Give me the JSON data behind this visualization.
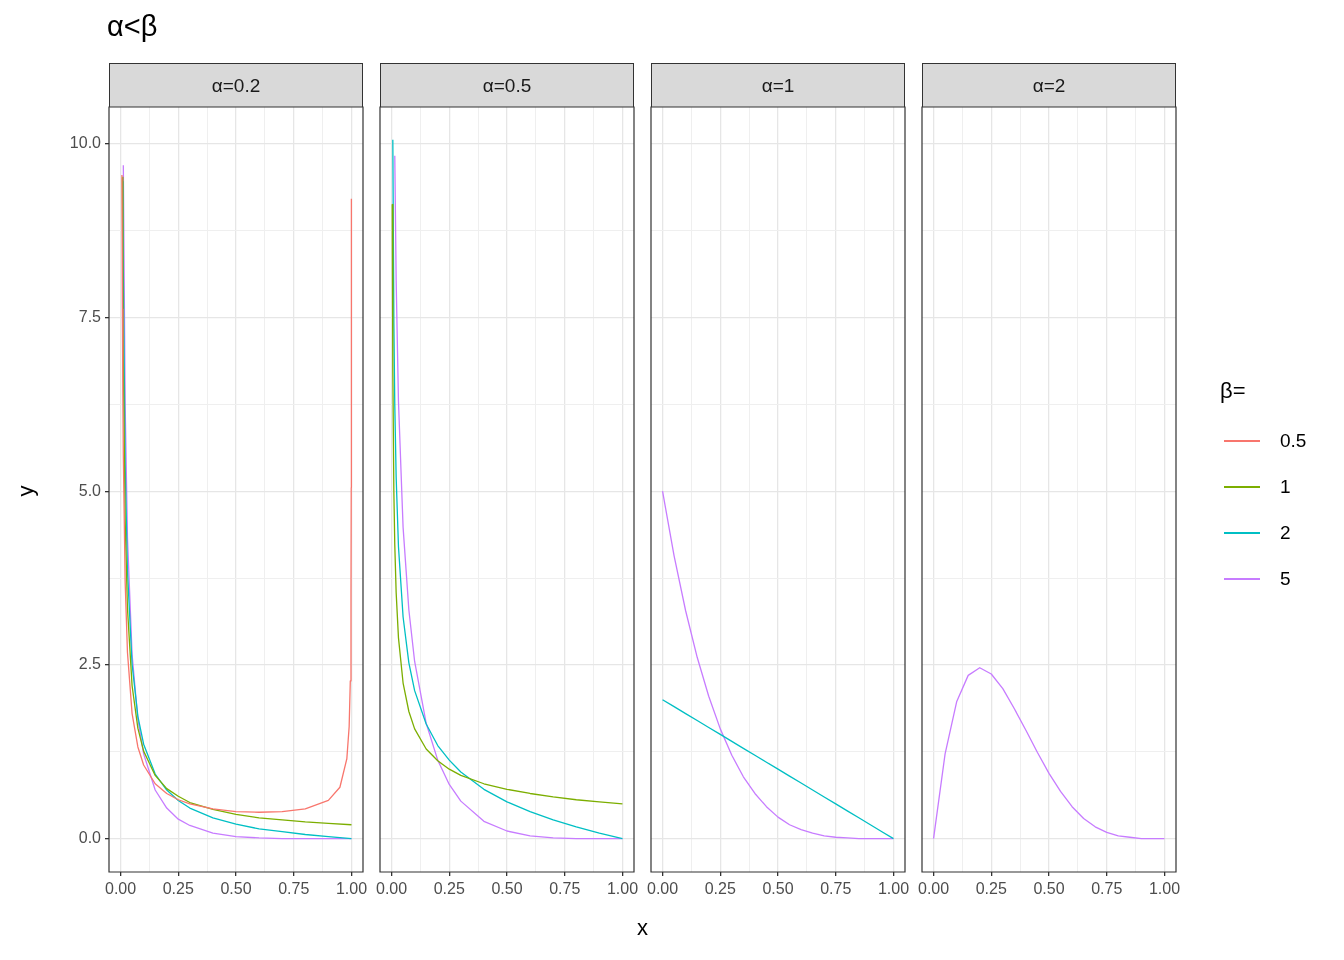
{
  "chart_data": [
    {
      "type": "line",
      "title": "α=0.2",
      "annotations": [
        "α<β"
      ],
      "ylabel": "y",
      "legend_title": "β=",
      "legend": "right",
      "grid": true,
      "xlim": [
        -0.05,
        1.05
      ],
      "ylim": [
        -0.48,
        10.53
      ],
      "xticks": [
        {
          "value": 0,
          "label": "0.00"
        },
        {
          "value": 0.125,
          "label": null
        },
        {
          "value": 0.25,
          "label": "0.25"
        },
        {
          "value": 0.375,
          "label": null
        },
        {
          "value": 0.5,
          "label": "0.50"
        },
        {
          "value": 0.625,
          "label": null
        },
        {
          "value": 0.75,
          "label": "0.75"
        },
        {
          "value": 0.875,
          "label": null
        },
        {
          "value": 1,
          "label": "1.00"
        }
      ],
      "yticks": [
        {
          "value": 0,
          "label": "0.0"
        },
        {
          "value": 1.25,
          "label": null
        },
        {
          "value": 2.5,
          "label": "2.5"
        },
        {
          "value": 3.75,
          "label": null
        },
        {
          "value": 5,
          "label": "5.0"
        },
        {
          "value": 6.25,
          "label": null
        },
        {
          "value": 7.5,
          "label": "7.5"
        },
        {
          "value": 8.75,
          "label": null
        },
        {
          "value": 10,
          "label": "10.0"
        }
      ],
      "x": [
        0.008,
        0.01,
        0.012,
        0.02,
        0.03,
        0.05,
        0.075,
        0.1,
        0.15,
        0.2,
        0.25,
        0.3,
        0.4,
        0.5,
        0.6,
        0.7,
        0.8,
        0.9,
        1
      ],
      "series": [
        {
          "name": "0.5",
          "color": "#f8766d",
          "x": [
            0.006,
            0.008,
            0.01,
            0.012,
            0.02,
            0.03,
            0.05,
            0.075,
            0.1,
            0.15,
            0.2,
            0.25,
            0.3,
            0.4,
            0.5,
            0.6,
            0.7,
            0.8,
            0.9,
            0.95,
            0.98,
            0.99,
            0.995,
            0.998,
            0.999,
            0.9997
          ],
          "values": [
            9.55,
            7.62,
            6.38,
            5.52,
            3.69,
            2.68,
            1.8,
            1.32,
            1.06,
            0.79,
            0.65,
            0.56,
            0.5,
            0.43,
            0.39,
            0.38,
            0.39,
            0.43,
            0.55,
            0.74,
            1.15,
            1.61,
            2.27,
            3.57,
            5.05,
            9.21
          ]
        },
        {
          "name": "1",
          "color": "#7cae00",
          "values": [
            9.52,
            7.96,
            6.88,
            4.57,
            3.31,
            2.2,
            1.59,
            1.26,
            0.91,
            0.72,
            0.61,
            0.52,
            0.42,
            0.35,
            0.3,
            0.27,
            0.24,
            0.22,
            0.2
          ]
        },
        {
          "name": "2",
          "color": "#00bfc4",
          "values": [
            null,
            9.46,
            8.16,
            5.38,
            3.85,
            2.51,
            1.76,
            1.36,
            0.93,
            0.7,
            0.55,
            0.44,
            0.3,
            0.21,
            0.14,
            0.1,
            0.06,
            0.03,
            0
          ]
        },
        {
          "name": "5",
          "color": "#c77cff",
          "x": [
            0.012,
            0.02,
            0.03,
            0.05,
            0.075,
            0.1,
            0.15,
            0.2,
            0.25,
            0.3,
            0.4,
            0.5,
            0.6,
            0.7,
            0.8,
            0.9,
            1
          ],
          "values": [
            9.69,
            6.24,
            4.33,
            2.65,
            1.72,
            1.22,
            0.7,
            0.44,
            0.28,
            0.19,
            0.08,
            0.03,
            0.01,
            0,
            0,
            0,
            0
          ]
        }
      ]
    },
    {
      "type": "line",
      "title": "α=0.5",
      "xlabel": "x",
      "grid": true,
      "tick_labels": "x",
      "xlim": [
        -0.05,
        1.05
      ],
      "ylim": [
        -0.48,
        10.53
      ],
      "xticks": [
        {
          "value": 0,
          "label": "0.00"
        },
        {
          "value": 0.125,
          "label": null
        },
        {
          "value": 0.25,
          "label": "0.25"
        },
        {
          "value": 0.375,
          "label": null
        },
        {
          "value": 0.5,
          "label": "0.50"
        },
        {
          "value": 0.625,
          "label": null
        },
        {
          "value": 0.75,
          "label": "0.75"
        },
        {
          "value": 0.875,
          "label": null
        },
        {
          "value": 1,
          "label": "1.00"
        }
      ],
      "yticks": [
        0,
        {
          "value": 1.25,
          "label": null
        },
        2.5,
        {
          "value": 3.75,
          "label": null
        },
        5,
        {
          "value": 6.25,
          "label": null
        },
        7.5,
        {
          "value": 8.75,
          "label": null
        },
        10
      ],
      "x": [
        0.003,
        0.0055,
        0.01,
        0.014,
        0.02,
        0.03,
        0.05,
        0.075,
        0.1,
        0.15,
        0.2,
        0.25,
        0.3,
        0.4,
        0.5,
        0.6,
        0.7,
        0.8,
        0.9,
        1
      ],
      "series": [
        {
          "name": "1",
          "color": "#7cae00",
          "values": [
            9.13,
            6.74,
            5,
            4.23,
            3.54,
            2.89,
            2.24,
            1.83,
            1.58,
            1.29,
            1.12,
            1,
            0.91,
            0.79,
            0.71,
            0.65,
            0.6,
            0.56,
            0.53,
            0.5
          ]
        },
        {
          "name": "2",
          "color": "#00bfc4",
          "values": [
            null,
            10.06,
            7.43,
            6.25,
            5.2,
            4.2,
            3.19,
            2.53,
            2.13,
            1.65,
            1.34,
            1.13,
            0.96,
            0.71,
            0.53,
            0.39,
            0.27,
            0.17,
            0.08,
            0
          ]
        },
        {
          "name": "5",
          "color": "#c77cff",
          "values": [
            null,
            null,
            null,
            9.83,
            8.03,
            6.29,
            4.48,
            3.29,
            2.55,
            1.66,
            1.13,
            0.78,
            0.54,
            0.25,
            0.11,
            0.04,
            0.01,
            0,
            0,
            0
          ]
        }
      ]
    },
    {
      "type": "line",
      "title": "α=1",
      "grid": true,
      "tick_labels": "x",
      "xlim": [
        -0.05,
        1.05
      ],
      "ylim": [
        -0.48,
        10.53
      ],
      "xticks": [
        {
          "value": 0,
          "label": "0.00"
        },
        {
          "value": 0.125,
          "label": null
        },
        {
          "value": 0.25,
          "label": "0.25"
        },
        {
          "value": 0.375,
          "label": null
        },
        {
          "value": 0.5,
          "label": "0.50"
        },
        {
          "value": 0.625,
          "label": null
        },
        {
          "value": 0.75,
          "label": "0.75"
        },
        {
          "value": 0.875,
          "label": null
        },
        {
          "value": 1,
          "label": "1.00"
        }
      ],
      "yticks": [
        0,
        {
          "value": 1.25,
          "label": null
        },
        2.5,
        {
          "value": 3.75,
          "label": null
        },
        5,
        {
          "value": 6.25,
          "label": null
        },
        7.5,
        {
          "value": 8.75,
          "label": null
        },
        10
      ],
      "x": [
        0,
        0.05,
        0.1,
        0.15,
        0.2,
        0.25,
        0.3,
        0.35,
        0.4,
        0.45,
        0.5,
        0.55,
        0.6,
        0.65,
        0.7,
        0.75,
        0.8,
        0.85,
        0.9,
        0.95,
        1
      ],
      "series": [
        {
          "name": "2",
          "color": "#00bfc4",
          "values": [
            2,
            1.9,
            1.8,
            1.7,
            1.6,
            1.5,
            1.4,
            1.3,
            1.2,
            1.1,
            1,
            0.9,
            0.8,
            0.7,
            0.6,
            0.5,
            0.4,
            0.3,
            0.2,
            0.1,
            0
          ]
        },
        {
          "name": "5",
          "color": "#c77cff",
          "values": [
            5,
            4.07,
            3.28,
            2.61,
            2.05,
            1.58,
            1.2,
            0.89,
            0.65,
            0.46,
            0.31,
            0.2,
            0.13,
            0.08,
            0.04,
            0.02,
            0.01,
            0,
            0,
            0,
            0
          ]
        }
      ]
    },
    {
      "type": "line",
      "title": "α=2",
      "grid": true,
      "tick_labels": "x",
      "xlim": [
        -0.05,
        1.05
      ],
      "ylim": [
        -0.48,
        10.53
      ],
      "xticks": [
        {
          "value": 0,
          "label": "0.00"
        },
        {
          "value": 0.125,
          "label": null
        },
        {
          "value": 0.25,
          "label": "0.25"
        },
        {
          "value": 0.375,
          "label": null
        },
        {
          "value": 0.5,
          "label": "0.50"
        },
        {
          "value": 0.625,
          "label": null
        },
        {
          "value": 0.75,
          "label": "0.75"
        },
        {
          "value": 0.875,
          "label": null
        },
        {
          "value": 1,
          "label": "1.00"
        }
      ],
      "yticks": [
        0,
        {
          "value": 1.25,
          "label": null
        },
        2.5,
        {
          "value": 3.75,
          "label": null
        },
        5,
        {
          "value": 6.25,
          "label": null
        },
        7.5,
        {
          "value": 8.75,
          "label": null
        },
        10
      ],
      "x": [
        0,
        0.05,
        0.1,
        0.15,
        0.2,
        0.25,
        0.3,
        0.35,
        0.4,
        0.45,
        0.5,
        0.55,
        0.6,
        0.65,
        0.7,
        0.75,
        0.8,
        0.85,
        0.9,
        0.95,
        1
      ],
      "series": [
        {
          "name": "5",
          "color": "#c77cff",
          "values": [
            0,
            1.22,
            1.97,
            2.35,
            2.46,
            2.37,
            2.16,
            1.87,
            1.56,
            1.24,
            0.94,
            0.68,
            0.46,
            0.29,
            0.17,
            0.09,
            0.04,
            0.02,
            0,
            0,
            0
          ]
        }
      ]
    }
  ]
}
